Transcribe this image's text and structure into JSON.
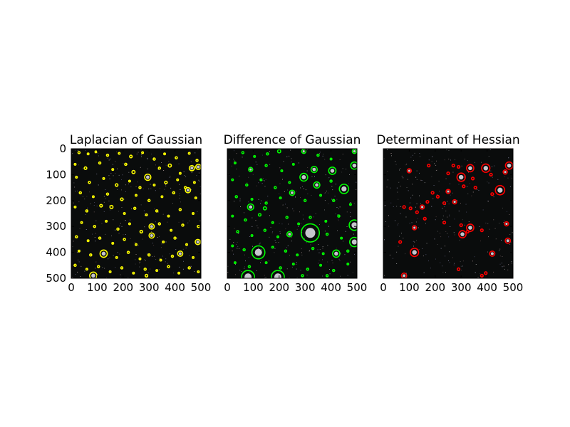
{
  "chart_data": [
    {
      "type": "scatter",
      "title": "Laplacian of Gaussian",
      "xlim": [
        0,
        500
      ],
      "ylim": [
        500,
        0
      ],
      "xticks": [
        "0",
        "100",
        "200",
        "300",
        "400",
        "500"
      ],
      "yticks": [
        "0",
        "100",
        "200",
        "300",
        "400",
        "500"
      ],
      "marker_color": "#ffff00",
      "blobs": [
        {
          "x": 30,
          "y": 15,
          "r": 4
        },
        {
          "x": 65,
          "y": 20,
          "r": 3
        },
        {
          "x": 95,
          "y": 12,
          "r": 3
        },
        {
          "x": 140,
          "y": 25,
          "r": 4
        },
        {
          "x": 185,
          "y": 18,
          "r": 3
        },
        {
          "x": 230,
          "y": 30,
          "r": 5
        },
        {
          "x": 275,
          "y": 15,
          "r": 3
        },
        {
          "x": 320,
          "y": 40,
          "r": 4
        },
        {
          "x": 360,
          "y": 20,
          "r": 3
        },
        {
          "x": 405,
          "y": 35,
          "r": 4
        },
        {
          "x": 455,
          "y": 18,
          "r": 3
        },
        {
          "x": 485,
          "y": 45,
          "r": 4
        },
        {
          "x": 15,
          "y": 60,
          "r": 3
        },
        {
          "x": 55,
          "y": 75,
          "r": 5
        },
        {
          "x": 110,
          "y": 55,
          "r": 4
        },
        {
          "x": 160,
          "y": 80,
          "r": 3
        },
        {
          "x": 210,
          "y": 60,
          "r": 4
        },
        {
          "x": 240,
          "y": 90,
          "r": 6
        },
        {
          "x": 295,
          "y": 110,
          "r": 12
        },
        {
          "x": 340,
          "y": 75,
          "r": 4
        },
        {
          "x": 380,
          "y": 65,
          "r": 6
        },
        {
          "x": 420,
          "y": 95,
          "r": 3
        },
        {
          "x": 465,
          "y": 75,
          "r": 10
        },
        {
          "x": 490,
          "y": 70,
          "r": 10
        },
        {
          "x": 20,
          "y": 110,
          "r": 3
        },
        {
          "x": 70,
          "y": 130,
          "r": 4
        },
        {
          "x": 125,
          "y": 115,
          "r": 3
        },
        {
          "x": 175,
          "y": 140,
          "r": 5
        },
        {
          "x": 225,
          "y": 125,
          "r": 3
        },
        {
          "x": 265,
          "y": 150,
          "r": 4
        },
        {
          "x": 320,
          "y": 140,
          "r": 3
        },
        {
          "x": 365,
          "y": 130,
          "r": 5
        },
        {
          "x": 410,
          "y": 120,
          "r": 3
        },
        {
          "x": 440,
          "y": 150,
          "r": 4
        },
        {
          "x": 475,
          "y": 130,
          "r": 3
        },
        {
          "x": 35,
          "y": 170,
          "r": 4
        },
        {
          "x": 85,
          "y": 185,
          "r": 3
        },
        {
          "x": 140,
          "y": 175,
          "r": 4
        },
        {
          "x": 195,
          "y": 195,
          "r": 5
        },
        {
          "x": 250,
          "y": 180,
          "r": 3
        },
        {
          "x": 300,
          "y": 200,
          "r": 4
        },
        {
          "x": 350,
          "y": 185,
          "r": 3
        },
        {
          "x": 395,
          "y": 170,
          "r": 4
        },
        {
          "x": 450,
          "y": 160,
          "r": 10
        },
        {
          "x": 480,
          "y": 190,
          "r": 3
        },
        {
          "x": 15,
          "y": 225,
          "r": 3
        },
        {
          "x": 60,
          "y": 240,
          "r": 4
        },
        {
          "x": 115,
          "y": 220,
          "r": 5
        },
        {
          "x": 155,
          "y": 225,
          "r": 6
        },
        {
          "x": 205,
          "y": 250,
          "r": 3
        },
        {
          "x": 245,
          "y": 230,
          "r": 4
        },
        {
          "x": 290,
          "y": 255,
          "r": 3
        },
        {
          "x": 330,
          "y": 240,
          "r": 4
        },
        {
          "x": 375,
          "y": 260,
          "r": 3
        },
        {
          "x": 420,
          "y": 235,
          "r": 4
        },
        {
          "x": 470,
          "y": 250,
          "r": 3
        },
        {
          "x": 40,
          "y": 285,
          "r": 3
        },
        {
          "x": 90,
          "y": 300,
          "r": 4
        },
        {
          "x": 135,
          "y": 280,
          "r": 3
        },
        {
          "x": 180,
          "y": 310,
          "r": 4
        },
        {
          "x": 225,
          "y": 290,
          "r": 3
        },
        {
          "x": 270,
          "y": 320,
          "r": 5
        },
        {
          "x": 310,
          "y": 300,
          "r": 10
        },
        {
          "x": 340,
          "y": 290,
          "r": 4
        },
        {
          "x": 385,
          "y": 315,
          "r": 3
        },
        {
          "x": 430,
          "y": 295,
          "r": 4
        },
        {
          "x": 490,
          "y": 300,
          "r": 4
        },
        {
          "x": 20,
          "y": 340,
          "r": 4
        },
        {
          "x": 65,
          "y": 355,
          "r": 3
        },
        {
          "x": 110,
          "y": 345,
          "r": 4
        },
        {
          "x": 160,
          "y": 365,
          "r": 3
        },
        {
          "x": 205,
          "y": 350,
          "r": 4
        },
        {
          "x": 250,
          "y": 370,
          "r": 3
        },
        {
          "x": 310,
          "y": 335,
          "r": 10
        },
        {
          "x": 355,
          "y": 360,
          "r": 3
        },
        {
          "x": 400,
          "y": 345,
          "r": 4
        },
        {
          "x": 445,
          "y": 370,
          "r": 3
        },
        {
          "x": 488,
          "y": 360,
          "r": 10
        },
        {
          "x": 30,
          "y": 395,
          "r": 3
        },
        {
          "x": 75,
          "y": 410,
          "r": 4
        },
        {
          "x": 125,
          "y": 405,
          "r": 14
        },
        {
          "x": 175,
          "y": 420,
          "r": 3
        },
        {
          "x": 220,
          "y": 400,
          "r": 4
        },
        {
          "x": 265,
          "y": 425,
          "r": 3
        },
        {
          "x": 300,
          "y": 410,
          "r": 4
        },
        {
          "x": 345,
          "y": 430,
          "r": 3
        },
        {
          "x": 390,
          "y": 415,
          "r": 4
        },
        {
          "x": 420,
          "y": 405,
          "r": 10
        },
        {
          "x": 470,
          "y": 420,
          "r": 3
        },
        {
          "x": 15,
          "y": 450,
          "r": 4
        },
        {
          "x": 60,
          "y": 465,
          "r": 3
        },
        {
          "x": 105,
          "y": 455,
          "r": 4
        },
        {
          "x": 150,
          "y": 475,
          "r": 3
        },
        {
          "x": 195,
          "y": 460,
          "r": 4
        },
        {
          "x": 240,
          "y": 480,
          "r": 3
        },
        {
          "x": 285,
          "y": 465,
          "r": 4
        },
        {
          "x": 330,
          "y": 470,
          "r": 3
        },
        {
          "x": 375,
          "y": 455,
          "r": 4
        },
        {
          "x": 415,
          "y": 480,
          "r": 3
        },
        {
          "x": 455,
          "y": 460,
          "r": 4
        },
        {
          "x": 490,
          "y": 475,
          "r": 3
        },
        {
          "x": 85,
          "y": 490,
          "r": 14
        },
        {
          "x": 290,
          "y": 490,
          "r": 5
        }
      ]
    },
    {
      "type": "scatter",
      "title": "Difference of Gaussian",
      "xlim": [
        0,
        500
      ],
      "ylim": [
        500,
        0
      ],
      "xticks": [
        "0",
        "100",
        "200",
        "300",
        "400",
        "500"
      ],
      "yticks": [
        "0",
        "100",
        "200",
        "300",
        "400",
        "500"
      ],
      "marker_color": "#00ff00",
      "blobs": [
        {
          "x": 60,
          "y": 15,
          "r": 4
        },
        {
          "x": 105,
          "y": 30,
          "r": 3
        },
        {
          "x": 155,
          "y": 20,
          "r": 4
        },
        {
          "x": 200,
          "y": 10,
          "r": 6
        },
        {
          "x": 295,
          "y": 10,
          "r": 8
        },
        {
          "x": 350,
          "y": 25,
          "r": 4
        },
        {
          "x": 400,
          "y": 40,
          "r": 3
        },
        {
          "x": 490,
          "y": 10,
          "r": 8
        },
        {
          "x": 30,
          "y": 55,
          "r": 3
        },
        {
          "x": 90,
          "y": 80,
          "r": 8
        },
        {
          "x": 150,
          "y": 65,
          "r": 4
        },
        {
          "x": 210,
          "y": 85,
          "r": 3
        },
        {
          "x": 255,
          "y": 60,
          "r": 3
        },
        {
          "x": 335,
          "y": 80,
          "r": 12
        },
        {
          "x": 405,
          "y": 85,
          "r": 14
        },
        {
          "x": 490,
          "y": 65,
          "r": 14
        },
        {
          "x": 20,
          "y": 120,
          "r": 3
        },
        {
          "x": 75,
          "y": 140,
          "r": 4
        },
        {
          "x": 130,
          "y": 120,
          "r": 3
        },
        {
          "x": 185,
          "y": 150,
          "r": 4
        },
        {
          "x": 240,
          "y": 130,
          "r": 3
        },
        {
          "x": 295,
          "y": 110,
          "r": 15
        },
        {
          "x": 345,
          "y": 140,
          "r": 12
        },
        {
          "x": 400,
          "y": 125,
          "r": 4
        },
        {
          "x": 450,
          "y": 155,
          "r": 18
        },
        {
          "x": 250,
          "y": 170,
          "r": 10
        },
        {
          "x": 35,
          "y": 185,
          "r": 4
        },
        {
          "x": 95,
          "y": 195,
          "r": 3
        },
        {
          "x": 150,
          "y": 210,
          "r": 4
        },
        {
          "x": 205,
          "y": 190,
          "r": 3
        },
        {
          "x": 300,
          "y": 200,
          "r": 4
        },
        {
          "x": 360,
          "y": 180,
          "r": 3
        },
        {
          "x": 410,
          "y": 200,
          "r": 4
        },
        {
          "x": 475,
          "y": 215,
          "r": 3
        },
        {
          "x": 90,
          "y": 225,
          "r": 12
        },
        {
          "x": 145,
          "y": 230,
          "r": 6
        },
        {
          "x": 20,
          "y": 260,
          "r": 3
        },
        {
          "x": 70,
          "y": 275,
          "r": 4
        },
        {
          "x": 125,
          "y": 255,
          "r": 5
        },
        {
          "x": 175,
          "y": 285,
          "r": 3
        },
        {
          "x": 230,
          "y": 265,
          "r": 4
        },
        {
          "x": 275,
          "y": 290,
          "r": 3
        },
        {
          "x": 320,
          "y": 265,
          "r": 4
        },
        {
          "x": 380,
          "y": 280,
          "r": 3
        },
        {
          "x": 430,
          "y": 260,
          "r": 4
        },
        {
          "x": 490,
          "y": 295,
          "r": 20
        },
        {
          "x": 40,
          "y": 320,
          "r": 4
        },
        {
          "x": 95,
          "y": 335,
          "r": 3
        },
        {
          "x": 145,
          "y": 315,
          "r": 4
        },
        {
          "x": 195,
          "y": 340,
          "r": 3
        },
        {
          "x": 240,
          "y": 330,
          "r": 10
        },
        {
          "x": 320,
          "y": 325,
          "r": 35
        },
        {
          "x": 385,
          "y": 330,
          "r": 4
        },
        {
          "x": 440,
          "y": 345,
          "r": 3
        },
        {
          "x": 490,
          "y": 360,
          "r": 18
        },
        {
          "x": 20,
          "y": 375,
          "r": 3
        },
        {
          "x": 65,
          "y": 390,
          "r": 4
        },
        {
          "x": 120,
          "y": 400,
          "r": 25
        },
        {
          "x": 175,
          "y": 380,
          "r": 3
        },
        {
          "x": 225,
          "y": 395,
          "r": 4
        },
        {
          "x": 270,
          "y": 410,
          "r": 3
        },
        {
          "x": 330,
          "y": 385,
          "r": 4
        },
        {
          "x": 370,
          "y": 405,
          "r": 3
        },
        {
          "x": 420,
          "y": 405,
          "r": 14
        },
        {
          "x": 465,
          "y": 395,
          "r": 4
        },
        {
          "x": 30,
          "y": 440,
          "r": 3
        },
        {
          "x": 85,
          "y": 455,
          "r": 4
        },
        {
          "x": 150,
          "y": 440,
          "r": 3
        },
        {
          "x": 205,
          "y": 460,
          "r": 4
        },
        {
          "x": 255,
          "y": 445,
          "r": 3
        },
        {
          "x": 310,
          "y": 465,
          "r": 4
        },
        {
          "x": 360,
          "y": 450,
          "r": 3
        },
        {
          "x": 410,
          "y": 470,
          "r": 4
        },
        {
          "x": 465,
          "y": 445,
          "r": 3
        },
        {
          "x": 80,
          "y": 495,
          "r": 25
        },
        {
          "x": 195,
          "y": 495,
          "r": 25
        },
        {
          "x": 290,
          "y": 490,
          "r": 4
        },
        {
          "x": 385,
          "y": 490,
          "r": 4
        }
      ]
    },
    {
      "type": "scatter",
      "title": "Determinant of Hessian",
      "xlim": [
        0,
        500
      ],
      "ylim": [
        500,
        0
      ],
      "xticks": [
        "0",
        "100",
        "200",
        "300",
        "400",
        "500"
      ],
      "yticks": [
        "0",
        "100",
        "200",
        "300",
        "400",
        "500"
      ],
      "marker_color": "#ff0000",
      "blobs": [
        {
          "x": 100,
          "y": 85,
          "r": 8
        },
        {
          "x": 175,
          "y": 65,
          "r": 5
        },
        {
          "x": 270,
          "y": 65,
          "r": 5
        },
        {
          "x": 290,
          "y": 70,
          "r": 5
        },
        {
          "x": 335,
          "y": 75,
          "r": 14
        },
        {
          "x": 395,
          "y": 75,
          "r": 16
        },
        {
          "x": 470,
          "y": 90,
          "r": 8
        },
        {
          "x": 485,
          "y": 65,
          "r": 14
        },
        {
          "x": 250,
          "y": 95,
          "r": 5
        },
        {
          "x": 300,
          "y": 110,
          "r": 16
        },
        {
          "x": 345,
          "y": 115,
          "r": 5
        },
        {
          "x": 415,
          "y": 100,
          "r": 5
        },
        {
          "x": 310,
          "y": 145,
          "r": 5
        },
        {
          "x": 355,
          "y": 150,
          "r": 5
        },
        {
          "x": 450,
          "y": 160,
          "r": 18
        },
        {
          "x": 190,
          "y": 170,
          "r": 5
        },
        {
          "x": 250,
          "y": 165,
          "r": 8
        },
        {
          "x": 210,
          "y": 185,
          "r": 5
        },
        {
          "x": 420,
          "y": 175,
          "r": 5
        },
        {
          "x": 275,
          "y": 205,
          "r": 8
        },
        {
          "x": 235,
          "y": 210,
          "r": 5
        },
        {
          "x": 170,
          "y": 205,
          "r": 5
        },
        {
          "x": 80,
          "y": 225,
          "r": 5
        },
        {
          "x": 105,
          "y": 230,
          "r": 5
        },
        {
          "x": 150,
          "y": 225,
          "r": 8
        },
        {
          "x": 130,
          "y": 245,
          "r": 5
        },
        {
          "x": 160,
          "y": 270,
          "r": 5
        },
        {
          "x": 120,
          "y": 305,
          "r": 8
        },
        {
          "x": 235,
          "y": 285,
          "r": 5
        },
        {
          "x": 300,
          "y": 295,
          "r": 5
        },
        {
          "x": 335,
          "y": 305,
          "r": 14
        },
        {
          "x": 305,
          "y": 330,
          "r": 14
        },
        {
          "x": 325,
          "y": 320,
          "r": 5
        },
        {
          "x": 380,
          "y": 315,
          "r": 5
        },
        {
          "x": 475,
          "y": 290,
          "r": 8
        },
        {
          "x": 480,
          "y": 355,
          "r": 10
        },
        {
          "x": 65,
          "y": 360,
          "r": 5
        },
        {
          "x": 120,
          "y": 400,
          "r": 16
        },
        {
          "x": 420,
          "y": 405,
          "r": 10
        },
        {
          "x": 290,
          "y": 465,
          "r": 5
        },
        {
          "x": 380,
          "y": 490,
          "r": 5
        },
        {
          "x": 395,
          "y": 480,
          "r": 5
        },
        {
          "x": 80,
          "y": 490,
          "r": 10
        }
      ]
    }
  ]
}
